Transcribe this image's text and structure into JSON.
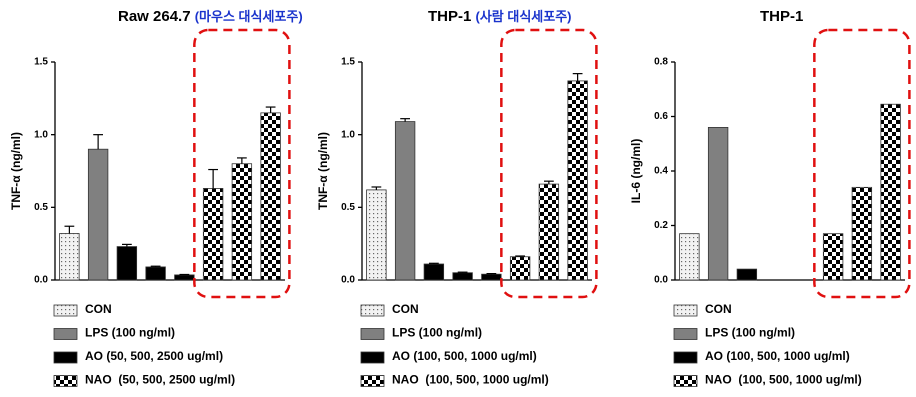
{
  "chart_data": [
    {
      "type": "bar",
      "title": "Raw 264.7",
      "subtitle": "(마우스 대식세포주)",
      "ylabel": "TNF-α (ng/ml)",
      "ylim": [
        0,
        1.5
      ],
      "yticks": [
        {
          "value": 0,
          "label": "0.0"
        },
        0.5,
        {
          "value": 1,
          "label": "1.0"
        },
        1.5
      ],
      "series": [
        {
          "name": "CON",
          "color": "#e6e6e6",
          "pattern": "dots",
          "values": [
            0.32
          ],
          "errors": [
            0.05
          ]
        },
        {
          "name": "LPS (100 ng/ml)",
          "color": "#808080",
          "pattern": "solid",
          "values": [
            0.9
          ],
          "errors": [
            0.1
          ]
        },
        {
          "name": "AO (50, 500, 2500 ug/ml)",
          "color": "#000000",
          "pattern": "solid",
          "values": [
            0.23,
            0.09,
            0.035
          ],
          "errors": [
            0.015,
            0.005,
            0.003
          ]
        },
        {
          "name": "NAO  (50, 500, 2500 ug/ml)",
          "color": "#000000",
          "pattern": "checker",
          "values": [
            0.63,
            0.8,
            1.15
          ],
          "errors": [
            0.13,
            0.04,
            0.04
          ]
        }
      ],
      "highlight": "NAO  (50, 500, 2500 ug/ml)"
    },
    {
      "type": "bar",
      "title": "THP-1",
      "subtitle": "(사람 대식세포주)",
      "ylabel": "TNF-α (ng/ml)",
      "ylim": [
        0,
        1.5
      ],
      "yticks": [
        {
          "value": 0,
          "label": "0.0"
        },
        0.5,
        {
          "value": 1,
          "label": "1.0"
        },
        1.5
      ],
      "series": [
        {
          "name": "CON",
          "color": "#e6e6e6",
          "pattern": "dots",
          "values": [
            0.62
          ],
          "errors": [
            0.02
          ]
        },
        {
          "name": "LPS (100 ng/ml)",
          "color": "#808080",
          "pattern": "solid",
          "values": [
            1.09
          ],
          "errors": [
            0.02
          ]
        },
        {
          "name": "AO (100, 500, 1000 ug/ml)",
          "color": "#000000",
          "pattern": "solid",
          "values": [
            0.11,
            0.05,
            0.04
          ],
          "errors": [
            0.005,
            0.004,
            0.004
          ]
        },
        {
          "name": "NAO  (100, 500, 1000 ug/ml)",
          "color": "#000000",
          "pattern": "checker",
          "values": [
            0.16,
            0.66,
            1.37
          ],
          "errors": [
            0.005,
            0.02,
            0.05
          ]
        }
      ],
      "highlight": "NAO  (100, 500, 1000 ug/ml)"
    },
    {
      "type": "bar",
      "title": "THP-1",
      "ylabel": "IL-6 (ng/ml)",
      "ylim": [
        0,
        0.8
      ],
      "yticks": [
        {
          "value": 0,
          "label": "0.0"
        },
        0.2,
        0.4,
        0.6,
        0.8
      ],
      "series": [
        {
          "name": "CON",
          "color": "#e6e6e6",
          "pattern": "dots",
          "values": [
            0.17
          ]
        },
        {
          "name": "LPS (100 ng/ml)",
          "color": "#808080",
          "pattern": "solid",
          "values": [
            0.56
          ]
        },
        {
          "name": "AO (100, 500, 1000 ug/ml)",
          "color": "#000000",
          "pattern": "solid",
          "values": [
            0.04,
            null,
            null
          ]
        },
        {
          "name": "NAO  (100, 500, 1000 ug/ml)",
          "color": "#000000",
          "pattern": "checker",
          "values": [
            0.17,
            0.34,
            0.645
          ]
        }
      ],
      "highlight": "NAO  (100, 500, 1000 ug/ml)"
    }
  ]
}
